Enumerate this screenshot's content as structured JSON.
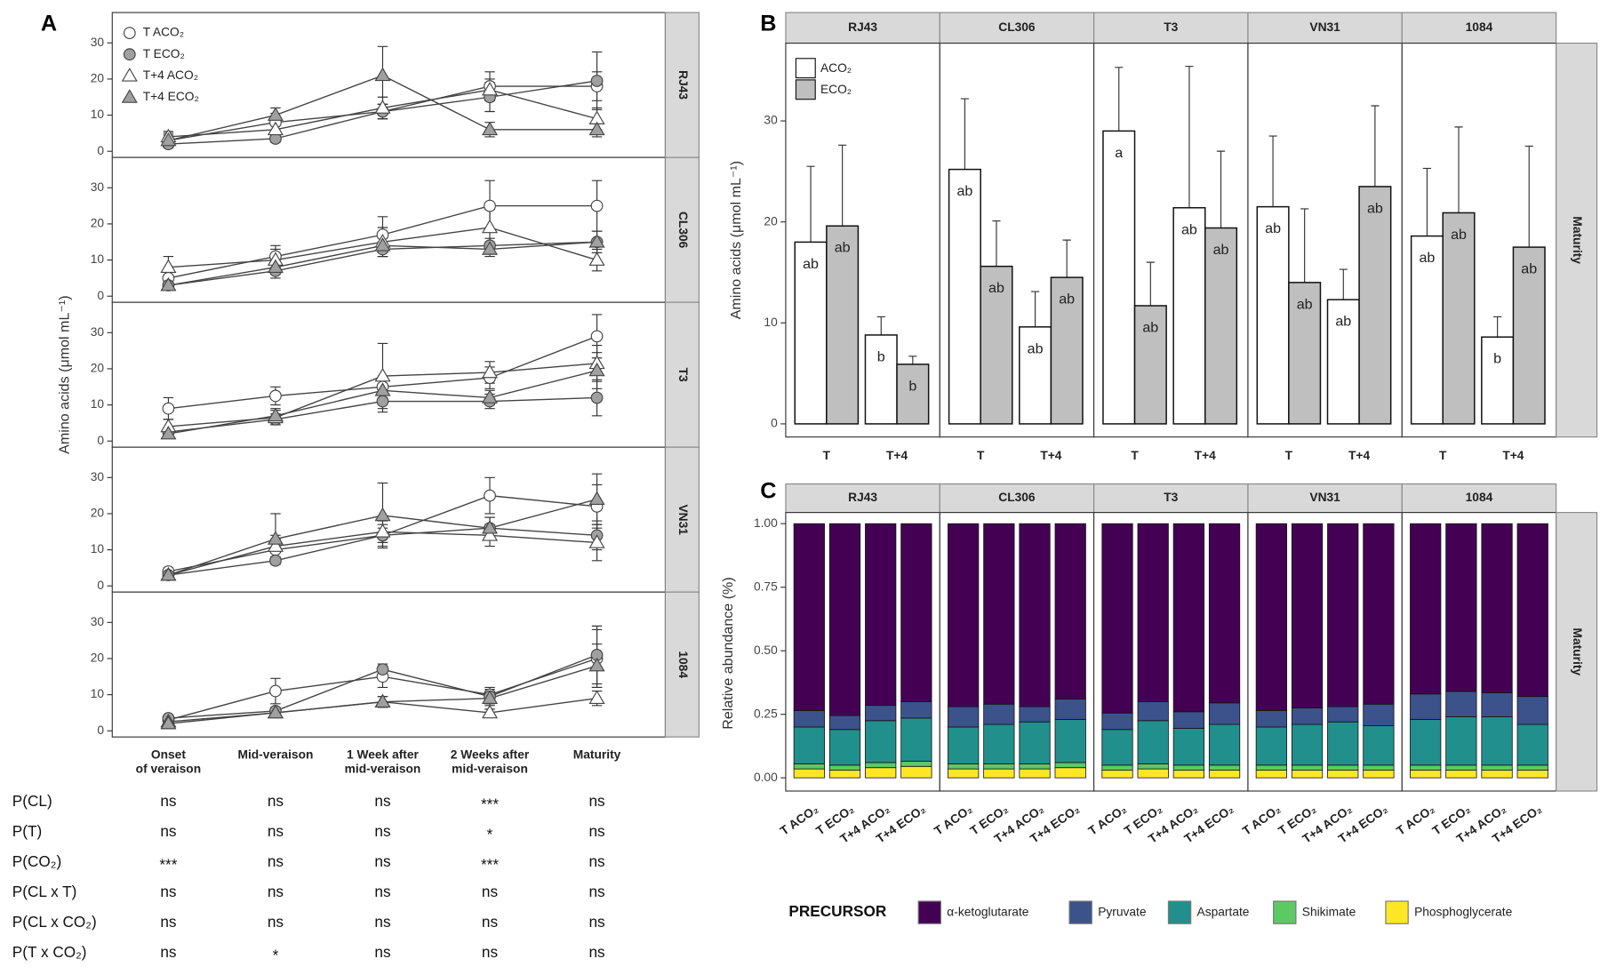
{
  "chart_data": [
    {
      "type": "line",
      "panel": "A",
      "ylabel": "Amino acids (μmol mL⁻¹)",
      "categories": [
        [
          "Onset",
          "of veraison"
        ],
        [
          "Mid-veraison"
        ],
        [
          "1 Week after",
          "mid-veraison"
        ],
        [
          "2 Weeks after",
          "mid-veraison"
        ],
        [
          "Maturity"
        ]
      ],
      "series": [
        {
          "name": "T ACO₂",
          "color": "#ffffff",
          "marker": "circle"
        },
        {
          "name": "T ECO₂",
          "color": "#a0a0a0",
          "marker": "circle"
        },
        {
          "name": "T+4 ACO₂",
          "color": "#ffffff",
          "marker": "triangle"
        },
        {
          "name": "T+4 ECO₂",
          "color": "#a0a0a0",
          "marker": "triangle"
        }
      ],
      "ylim": [
        -1.7,
        38.4
      ],
      "yticks": [
        0,
        10,
        20,
        30
      ],
      "facets": [
        {
          "name": "RJ43",
          "values": [
            [
              3,
              8,
              11,
              18,
              18
            ],
            [
              2,
              3.5,
              11,
              15,
              19.5
            ],
            [
              4,
              6,
              12,
              17,
              9
            ],
            [
              3,
              10,
              21,
              6,
              6
            ]
          ],
          "errors": [
            [
              1.5,
              2.5,
              2,
              4,
              4
            ],
            [
              1,
              1,
              2,
              4,
              8
            ],
            [
              1.5,
              2,
              3,
              3,
              3
            ],
            [
              2,
              2,
              8,
              2,
              2
            ]
          ]
        },
        {
          "name": "CL306",
          "values": [
            [
              5,
              11,
              17,
              25,
              25
            ],
            [
              3,
              7,
              13,
              14,
              15
            ],
            [
              8,
              10,
              15,
              19,
              10
            ],
            [
              3,
              8,
              14,
              13,
              15
            ]
          ],
          "errors": [
            [
              2,
              3,
              5,
              7,
              7
            ],
            [
              1,
              2,
              2,
              2,
              3
            ],
            [
              3,
              3,
              4,
              5,
              3
            ],
            [
              1,
              2,
              3,
              2,
              3
            ]
          ]
        },
        {
          "name": "T3",
          "values": [
            [
              9,
              12.5,
              15,
              17.5,
              29
            ],
            [
              2.5,
              6,
              11,
              11,
              12
            ],
            [
              4,
              6.5,
              18,
              19,
              21.5
            ],
            [
              2,
              7,
              14,
              12,
              19.5
            ]
          ],
          "errors": [
            [
              3,
              2.5,
              3,
              3,
              6
            ],
            [
              1,
              1.5,
              3,
              2,
              5
            ],
            [
              2,
              2,
              9,
              3,
              5
            ],
            [
              1,
              2,
              3,
              2,
              5
            ]
          ]
        },
        {
          "name": "VN31",
          "values": [
            [
              4,
              10,
              14,
              25,
              22
            ],
            [
              3,
              7,
              14,
              16,
              14
            ],
            [
              3,
              11,
              15,
              14,
              12
            ],
            [
              3,
              13,
              19.5,
              16,
              24
            ]
          ],
          "errors": [
            [
              1,
              3,
              3,
              5,
              6
            ],
            [
              1,
              1,
              2,
              3,
              4
            ],
            [
              1,
              3,
              3,
              3,
              5
            ],
            [
              1,
              7,
              9,
              3,
              7
            ]
          ]
        },
        {
          "name": "1084",
          "values": [
            [
              3,
              11,
              15,
              10,
              20
            ],
            [
              3.5,
              5.5,
              17,
              9.5,
              21
            ],
            [
              2.5,
              5,
              8,
              5,
              9
            ],
            [
              2,
              5,
              8,
              9,
              18
            ]
          ],
          "errors": [
            [
              1,
              3.5,
              3,
              2,
              8
            ],
            [
              0.5,
              1,
              1.5,
              2,
              8
            ],
            [
              0.5,
              1,
              1.5,
              1,
              2
            ],
            [
              0.5,
              1,
              1.5,
              2,
              6
            ]
          ]
        }
      ]
    },
    {
      "type": "bar",
      "panel": "B",
      "ylabel": "Amino acids (μmol mL⁻¹)",
      "strip": "Maturity",
      "categories": [
        "T",
        "T+4"
      ],
      "series": [
        {
          "name": "ACO₂",
          "color": "#ffffff"
        },
        {
          "name": "ECO₂",
          "color": "#bfbfbf"
        }
      ],
      "ylim": [
        -1.3,
        37.7
      ],
      "yticks": [
        0,
        10,
        20,
        30
      ],
      "facets": [
        {
          "name": "RJ43",
          "values": [
            [
              18,
              8.8
            ],
            [
              19.6,
              5.9
            ]
          ],
          "errors": [
            [
              7.5,
              1.8
            ],
            [
              8,
              0.8
            ]
          ],
          "letters": [
            [
              "ab",
              "b"
            ],
            [
              "ab",
              "b"
            ]
          ]
        },
        {
          "name": "CL306",
          "values": [
            [
              25.2,
              9.6
            ],
            [
              15.6,
              14.5
            ]
          ],
          "errors": [
            [
              7,
              3.5
            ],
            [
              4.5,
              3.7
            ]
          ],
          "letters": [
            [
              "ab",
              "ab"
            ],
            [
              "ab",
              "ab"
            ]
          ]
        },
        {
          "name": "T3",
          "values": [
            [
              29,
              21.4
            ],
            [
              11.7,
              19.4
            ]
          ],
          "errors": [
            [
              6.3,
              14
            ],
            [
              4.3,
              7.6
            ]
          ],
          "letters": [
            [
              "a",
              "ab"
            ],
            [
              "ab",
              "ab"
            ]
          ]
        },
        {
          "name": "VN31",
          "values": [
            [
              21.5,
              12.3
            ],
            [
              14,
              23.5
            ]
          ],
          "errors": [
            [
              7,
              3
            ],
            [
              7.3,
              8
            ]
          ],
          "letters": [
            [
              "ab",
              "ab"
            ],
            [
              "ab",
              "ab"
            ]
          ]
        },
        {
          "name": "1084",
          "values": [
            [
              18.6,
              8.6
            ],
            [
              20.9,
              17.5
            ]
          ],
          "errors": [
            [
              6.7,
              2
            ],
            [
              8.5,
              10
            ]
          ],
          "letters": [
            [
              "ab",
              "b"
            ],
            [
              "ab",
              "ab"
            ]
          ]
        }
      ]
    },
    {
      "type": "stacked_bar",
      "panel": "C",
      "ylabel": "Relative abundance (%)",
      "strip": "Maturity",
      "legend_title": "PRECURSOR",
      "categories": [
        "T ACO₂",
        "T ECO₂",
        "T+4 ACO₂",
        "T+4 ECO₂"
      ],
      "series": [
        {
          "name": "α-ketoglutarate",
          "color": "#440154"
        },
        {
          "name": "Pyruvate",
          "color": "#3b528b"
        },
        {
          "name": "Aspartate",
          "color": "#21908c"
        },
        {
          "name": "Shikimate",
          "color": "#5dc963"
        },
        {
          "name": "Phosphoglycerate",
          "color": "#fde725"
        }
      ],
      "ylim": [
        -0.052,
        1.044
      ],
      "yticks": [
        {
          "value": 0,
          "label": "0.00"
        },
        {
          "value": 0.25,
          "label": "0.25"
        },
        {
          "value": 0.5,
          "label": "0.50"
        },
        {
          "value": 0.75,
          "label": "0.75"
        },
        {
          "value": 1,
          "label": "1.00"
        }
      ],
      "facets": [
        {
          "name": "RJ43",
          "values": [
            [
              0.735,
              0.755,
              0.715,
              0.7
            ],
            [
              0.065,
              0.055,
              0.06,
              0.065
            ],
            [
              0.145,
              0.14,
              0.165,
              0.17
            ],
            [
              0.02,
              0.02,
              0.02,
              0.02
            ],
            [
              0.035,
              0.03,
              0.04,
              0.045
            ]
          ]
        },
        {
          "name": "CL306",
          "values": [
            [
              0.72,
              0.71,
              0.72,
              0.69
            ],
            [
              0.08,
              0.08,
              0.06,
              0.08
            ],
            [
              0.145,
              0.155,
              0.165,
              0.17
            ],
            [
              0.02,
              0.02,
              0.02,
              0.02
            ],
            [
              0.035,
              0.035,
              0.035,
              0.04
            ]
          ]
        },
        {
          "name": "T3",
          "values": [
            [
              0.745,
              0.7,
              0.74,
              0.705
            ],
            [
              0.065,
              0.075,
              0.065,
              0.085
            ],
            [
              0.14,
              0.17,
              0.145,
              0.16
            ],
            [
              0.02,
              0.02,
              0.02,
              0.02
            ],
            [
              0.03,
              0.035,
              0.03,
              0.03
            ]
          ]
        },
        {
          "name": "VN31",
          "values": [
            [
              0.735,
              0.725,
              0.72,
              0.71
            ],
            [
              0.065,
              0.065,
              0.06,
              0.085
            ],
            [
              0.15,
              0.16,
              0.17,
              0.155
            ],
            [
              0.02,
              0.02,
              0.02,
              0.02
            ],
            [
              0.03,
              0.03,
              0.03,
              0.03
            ]
          ]
        },
        {
          "name": "1084",
          "values": [
            [
              0.67,
              0.66,
              0.665,
              0.68
            ],
            [
              0.1,
              0.1,
              0.095,
              0.11
            ],
            [
              0.18,
              0.19,
              0.19,
              0.16
            ],
            [
              0.02,
              0.02,
              0.02,
              0.02
            ],
            [
              0.03,
              0.03,
              0.03,
              0.03
            ]
          ]
        }
      ]
    }
  ],
  "table": {
    "rows": [
      [
        "P(CL)",
        "ns",
        "ns",
        "ns",
        "***",
        "ns"
      ],
      [
        "P(T)",
        "ns",
        "ns",
        "ns",
        "*",
        "ns"
      ],
      [
        "P(CO₂)",
        "***",
        "ns",
        "ns",
        "***",
        "ns"
      ],
      [
        "P(CL x T)",
        "ns",
        "ns",
        "ns",
        "ns",
        "ns"
      ],
      [
        "P(CL x CO₂)",
        "ns",
        "ns",
        "ns",
        "ns",
        "ns"
      ],
      [
        "P(T x CO₂)",
        "ns",
        "*",
        "ns",
        "ns",
        "ns"
      ]
    ]
  }
}
